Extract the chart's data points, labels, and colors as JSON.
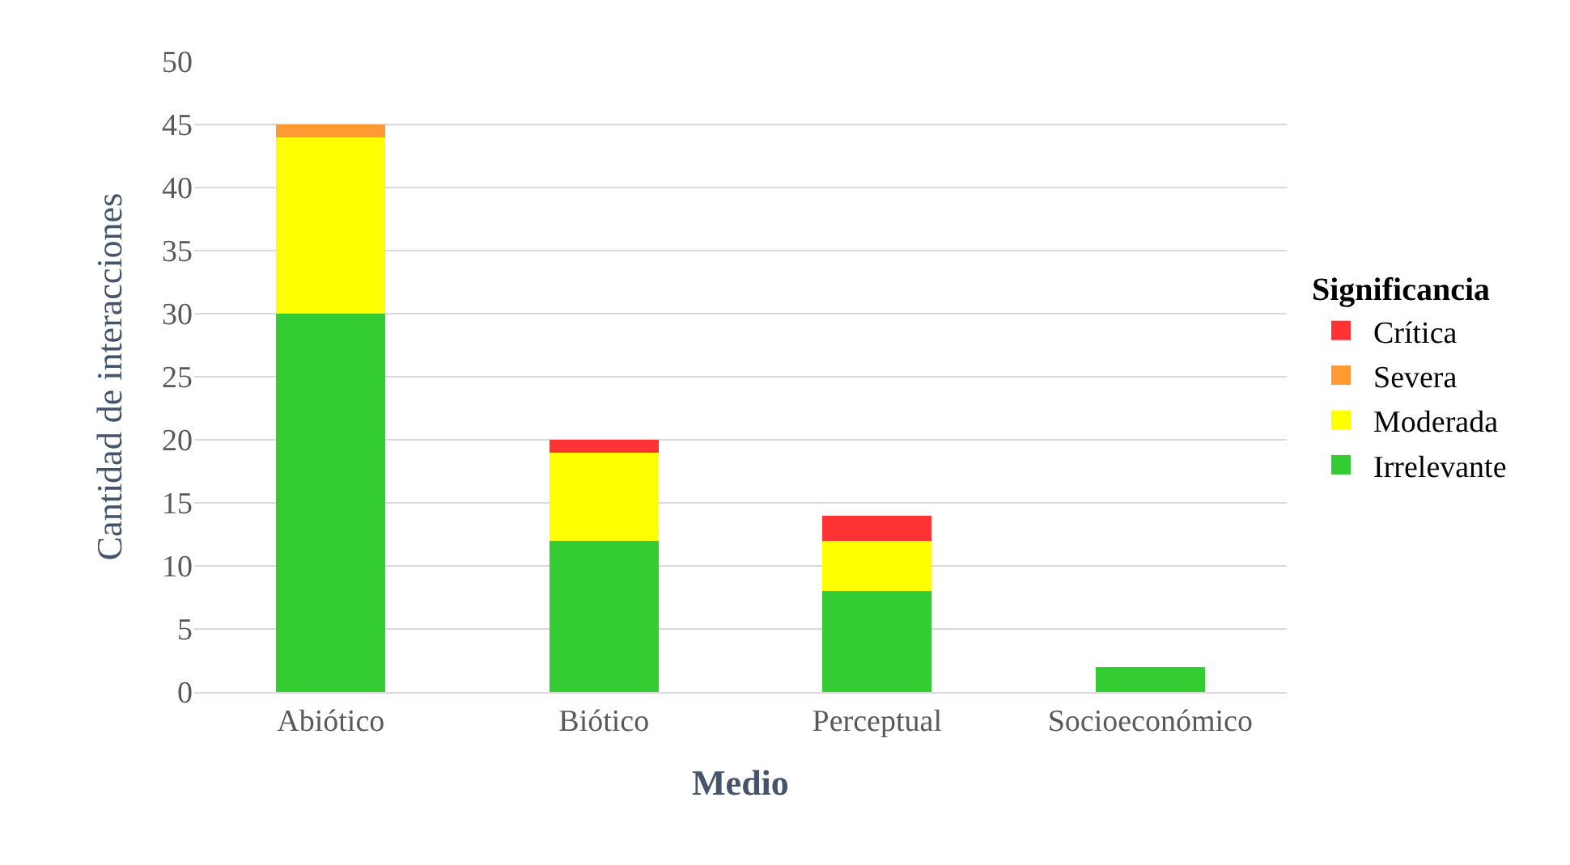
{
  "chart_data": {
    "type": "bar",
    "stacked": true,
    "xlabel": "Medio",
    "ylabel": "Cantidad de interacciones",
    "legend_title": "Significancia",
    "categories": [
      "Abiótico",
      "Biótico",
      "Perceptual",
      "Socioeconómico"
    ],
    "series": [
      {
        "name": "Irrelevante",
        "color": "#33cc33",
        "values": [
          30,
          12,
          8,
          2
        ]
      },
      {
        "name": "Moderada",
        "color": "#ffff00",
        "values": [
          14,
          7,
          4,
          0
        ]
      },
      {
        "name": "Severa",
        "color": "#ff9933",
        "values": [
          1,
          0,
          0,
          0
        ]
      },
      {
        "name": "Crítica",
        "color": "#ff3333",
        "values": [
          0,
          1,
          2,
          0
        ]
      }
    ],
    "ylim": [
      0,
      50
    ],
    "yticks": [
      0,
      5,
      10,
      15,
      20,
      25,
      30,
      35,
      40,
      45,
      50
    ],
    "grid": "y",
    "legend": "right"
  }
}
